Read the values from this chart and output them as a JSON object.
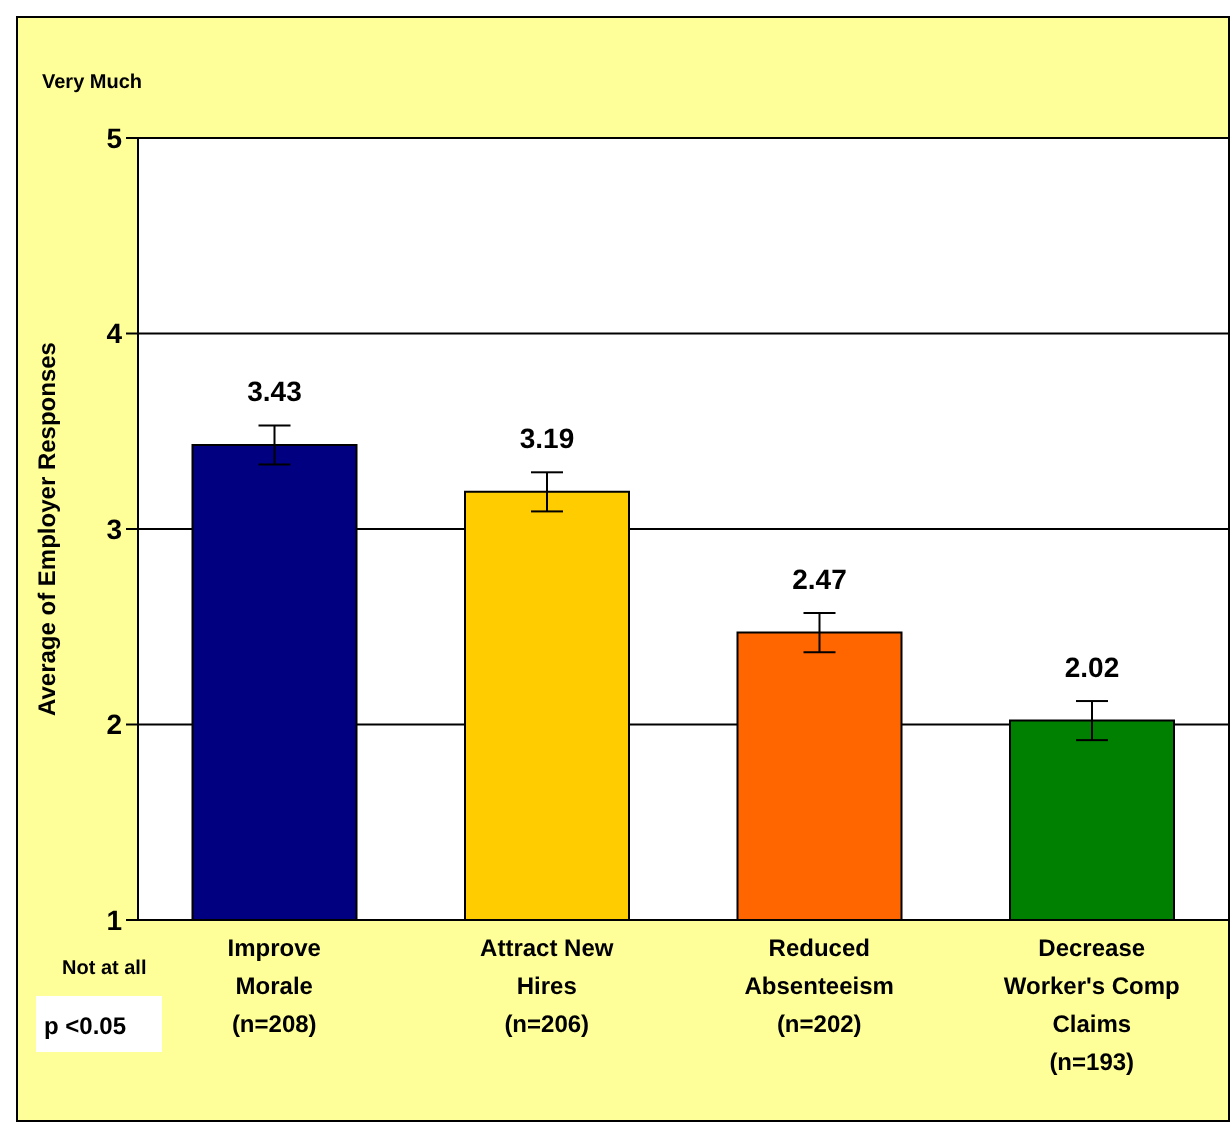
{
  "chart_data": {
    "type": "bar",
    "ylabel": "Average of Employer Responses",
    "categories": [
      "Improve\nMorale\n(n=208)",
      "Attract New\nHires\n(n=206)",
      "Reduced\nAbsenteeism\n(n=202)",
      "Decrease\nWorker's Comp\nClaims\n(n=193)"
    ],
    "values": [
      3.43,
      3.19,
      2.47,
      2.02
    ],
    "colors": [
      "#000080",
      "#ffcc00",
      "#ff6600",
      "#008000"
    ],
    "errors": [
      0.1,
      0.1,
      0.1,
      0.1
    ],
    "ylim": [
      1,
      5
    ],
    "yticks": [
      1,
      2,
      3,
      4,
      5
    ],
    "grid": "y",
    "data_labels": true,
    "annotations": [
      "Very Much",
      "Not at all",
      "p <0.05"
    ]
  }
}
